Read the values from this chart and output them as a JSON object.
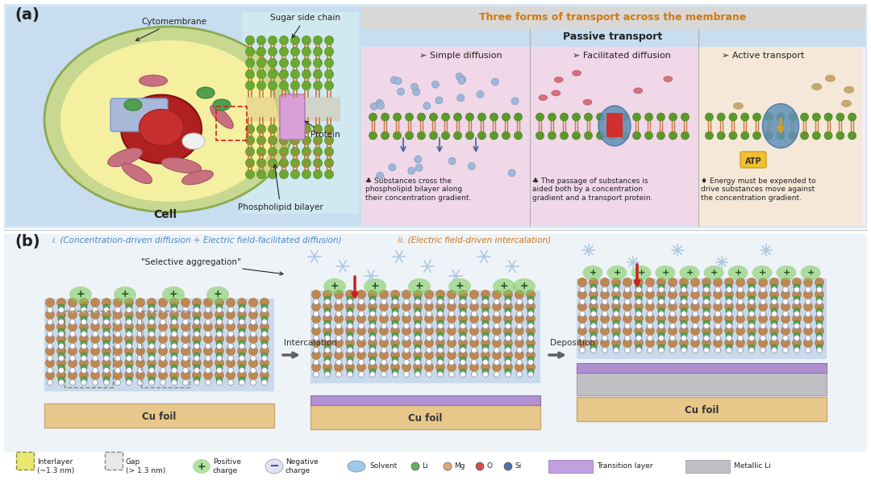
{
  "bg_color": "#ffffff",
  "panel_a_bg": "#d6e8f5",
  "panel_b_bg": "#f0f4f8",
  "title_a": "(a)",
  "title_b": "(b)",
  "panel_a_right_bg": "#f5e8f0",
  "passive_transport_text": "Passive transport",
  "three_forms_title": "Three forms of transport across the membrane",
  "simple_diffusion": "Simple diffusion",
  "facilitated_diffusion": "Facilitated diffusion",
  "active_transport": "Active transport",
  "desc1": "Substances cross the\nphospholipid bilayer along\ntheir concentration gradient.",
  "desc2": "The passage of substances is\naided both by a concentration\ngradient and a transport protein.",
  "desc3": "Energy must be expended to\ndrive substances move against\nthe concentration gradient.",
  "cell_label": "Cell",
  "cytomembrane": "Cytomembrane",
  "sugar_side_chain": "Sugar side chain",
  "protein": "Protein",
  "phospholipid_bilayer": "Phospholipid bilayer",
  "b_label_i": "i. (Concentration-driven diffusion + Electric field-facilitated diffusion)",
  "b_label_ii": " ii. (Electric field-driven intercalation)",
  "selective_aggregation": "\"Selective aggregation\"",
  "intercalation": "Intercalation",
  "deposition": "Deposition",
  "cu_foil": "Cu foil",
  "legend_interlayer": "Interlayer\n(~1.3 nm)",
  "legend_gap": "Gap\n(> 1.3 nm)",
  "legend_pos": "Positive\ncharge",
  "legend_neg": "Negative\ncharge",
  "legend_solvent": "Solvent",
  "legend_li": "Li",
  "legend_mg": "Mg",
  "legend_o": "O",
  "legend_si": "Si",
  "legend_transition": "Transition layer",
  "legend_metallic": "Metallic Li",
  "atp_label": "ATP",
  "orange_title_color": "#d4770a",
  "blue_label_i_color": "#4a86c8",
  "orange_label_ii_color": "#c87820",
  "dark_text": "#222222",
  "gray_text": "#555555"
}
